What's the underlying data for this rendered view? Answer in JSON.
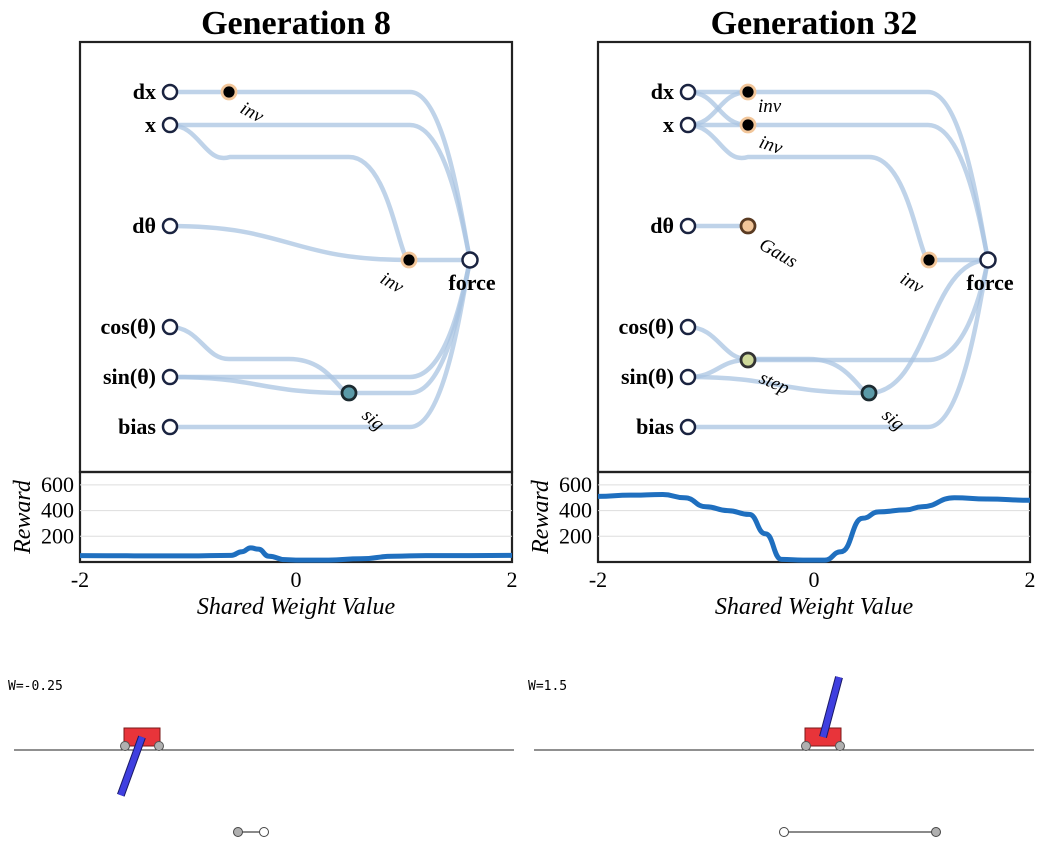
{
  "panels": [
    {
      "title": "Generation 8",
      "inputs": [
        "dx",
        "x",
        "dθ",
        "cos(θ)",
        "sin(θ)",
        "bias"
      ],
      "output": "force",
      "hidden": [
        {
          "id": "h_dx",
          "act": "inν",
          "fill": "#000000",
          "ring": "#f2c69a"
        },
        {
          "id": "h_mid",
          "act": "inν",
          "fill": "#000000",
          "ring": "#f2c69a"
        },
        {
          "id": "h_sig",
          "act": "sig",
          "fill": "#5b9aa8",
          "ring": "#1c2a30"
        }
      ],
      "reward": {
        "y_ticks": [
          "200",
          "400",
          "600"
        ],
        "x_ticks": [
          "-2",
          "0",
          "2"
        ],
        "xlabel": "Shared Weight Value",
        "ylabel": "Reward",
        "xlim": [
          -2,
          2
        ],
        "ylim": [
          0,
          700
        ],
        "x": [
          -2.0,
          -1.5,
          -1.0,
          -0.6,
          -0.5,
          -0.42,
          -0.35,
          -0.25,
          -0.1,
          0.0,
          0.3,
          0.6,
          0.9,
          1.2,
          1.6,
          2.0
        ],
        "y": [
          50,
          48,
          48,
          52,
          80,
          110,
          100,
          45,
          18,
          15,
          15,
          25,
          45,
          50,
          50,
          52
        ]
      },
      "cart": {
        "w_label": "W=-0.25",
        "pole_angle_deg": -160,
        "slider_value": -0.25
      }
    },
    {
      "title": "Generation 32",
      "inputs": [
        "dx",
        "x",
        "dθ",
        "cos(θ)",
        "sin(θ)",
        "bias"
      ],
      "output": "force",
      "hidden": [
        {
          "id": "h_dx",
          "act": "inν",
          "fill": "#000000",
          "ring": "#f2c69a"
        },
        {
          "id": "h_x",
          "act": "inν",
          "fill": "#000000",
          "ring": "#f2c69a"
        },
        {
          "id": "h_gaus",
          "act": "Gaus",
          "fill": "#f2c69a",
          "ring": "#5a3b22"
        },
        {
          "id": "h_step",
          "act": "step",
          "fill": "#cfd99a",
          "ring": "#333333"
        },
        {
          "id": "h_sig",
          "act": "sig",
          "fill": "#5b9aa8",
          "ring": "#1c2a30"
        },
        {
          "id": "h_mid",
          "act": "inν",
          "fill": "#000000",
          "ring": "#f2c69a"
        }
      ],
      "reward": {
        "y_ticks": [
          "200",
          "400",
          "600"
        ],
        "x_ticks": [
          "-2",
          "0",
          "2"
        ],
        "xlabel": "Shared Weight Value",
        "ylabel": "Reward",
        "xlim": [
          -2,
          2
        ],
        "ylim": [
          0,
          700
        ],
        "x": [
          -2.0,
          -1.7,
          -1.4,
          -1.2,
          -1.0,
          -0.8,
          -0.6,
          -0.45,
          -0.3,
          -0.1,
          0.1,
          0.25,
          0.45,
          0.6,
          0.85,
          1.0,
          1.3,
          1.6,
          2.0
        ],
        "y": [
          510,
          520,
          525,
          500,
          430,
          400,
          370,
          220,
          20,
          15,
          15,
          80,
          340,
          390,
          405,
          430,
          500,
          490,
          480
        ]
      },
      "cart": {
        "w_label": "W=1.5",
        "pole_angle_deg": 15,
        "slider_value": 1.5
      }
    }
  ],
  "colors": {
    "connection": "#a9c4e2",
    "curve": "#1f6fbf",
    "cart": "#e8343a",
    "pole": "#3f3fe0",
    "wheel": "#b0b0b0"
  }
}
